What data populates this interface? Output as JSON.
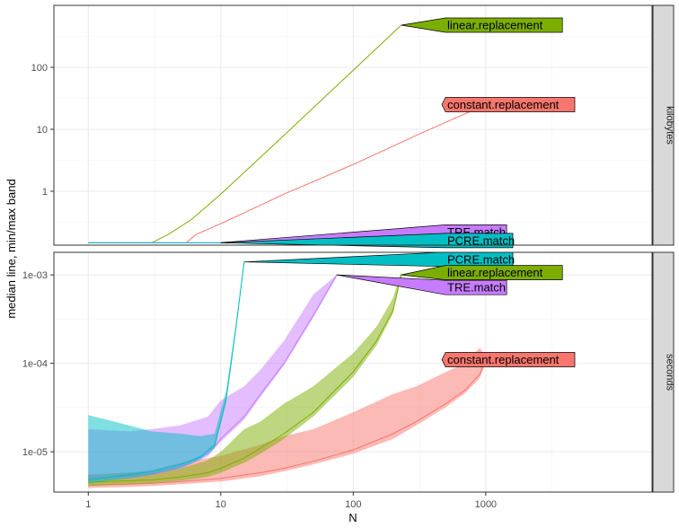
{
  "chart_data": {
    "type": "line",
    "xlabel": "N",
    "ylabel": "median line, min/max band",
    "x_scale": "log10",
    "xlim": [
      0.55,
      18000
    ],
    "x_ticks": [
      1,
      10,
      100,
      1000
    ],
    "x_tick_labels": [
      "1",
      "10",
      "100",
      "1000"
    ],
    "grid": true,
    "panels": [
      {
        "strip": "kilobytes",
        "y_scale": "log10",
        "ylim": [
          0.135,
          1000
        ],
        "y_ticks": [
          1,
          10,
          100
        ],
        "y_tick_labels": [
          "1",
          "10",
          "100"
        ],
        "series": [
          {
            "name": "linear.replacement",
            "color": "#7CAE00",
            "x": [
              1,
              3,
              4,
              6,
              10,
              30,
              100,
              230
            ],
            "y": [
              0.147,
              0.147,
              0.2,
              0.35,
              0.9,
              8,
              90,
              480
            ]
          },
          {
            "name": "constant.replacement",
            "color": "#F8766D",
            "x": [
              1,
              5.5,
              6.5,
              10,
              30,
              100,
              300,
              1000
            ],
            "y": [
              0.147,
              0.147,
              0.2,
              0.3,
              0.9,
              2.7,
              8,
              25
            ]
          },
          {
            "name": "TRE.match",
            "color": "#C77CFF",
            "x": [
              1,
              20,
              100,
              500
            ],
            "y": [
              0.147,
              0.147,
              0.148,
              0.148
            ]
          },
          {
            "name": "PCRE.match",
            "color": "#00BFC4",
            "x": [
              1,
              20,
              100,
              500
            ],
            "y": [
              0.147,
              0.147,
              0.147,
              0.147
            ]
          }
        ],
        "callouts": [
          {
            "label": "linear.replacement",
            "color": "#7CAE00",
            "tip": [
              230,
              480
            ],
            "y": 480
          },
          {
            "label": "constant.replacement",
            "color": "#F8766D",
            "tip": [
              1000,
              25
            ],
            "y": 25
          },
          {
            "label": "TRE.match",
            "color": "#C77CFF",
            "tip": [
              10,
              0.148
            ],
            "y": 0.22
          },
          {
            "label": "PCRE.match",
            "color": "#00BFC4",
            "tip": [
              10,
              0.147
            ],
            "y": 0.16
          }
        ]
      },
      {
        "strip": "seconds",
        "y_scale": "log10",
        "ylim": [
          3.5e-06,
          0.0018
        ],
        "y_ticks": [
          1e-05,
          0.0001,
          0.001
        ],
        "y_tick_labels": [
          "1e-05",
          "1e-04",
          "1e-03"
        ],
        "series": [
          {
            "name": "constant.replacement",
            "color": "#F8766D",
            "x": [
              1,
              2,
              3,
              5,
              10,
              20,
              30,
              50,
              100,
              200,
              300,
              500,
              700,
              900,
              1000
            ],
            "median": [
              4.2e-06,
              4.3e-06,
              4.4e-06,
              4.6e-06,
              5e-06,
              5.8e-06,
              6.5e-06,
              7.8e-06,
              1.05e-05,
              1.6e-05,
              2.2e-05,
              3.5e-05,
              5e-05,
              7.5e-05,
              0.00011
            ],
            "min": [
              3.9e-06,
              4e-06,
              4.1e-06,
              4.3e-06,
              4.6e-06,
              5.3e-06,
              6e-06,
              7.2e-06,
              9.5e-06,
              1.4e-05,
              2e-05,
              3.2e-05,
              4.6e-05,
              6.8e-05,
              0.0001
            ],
            "max": [
              5.5e-06,
              5.8e-06,
              6.2e-06,
              7.5e-06,
              9e-06,
              1.2e-05,
              1.5e-05,
              1.8e-05,
              2.8e-05,
              4.5e-05,
              5.5e-05,
              8e-05,
              0.0001,
              0.00015,
              0.00012
            ]
          },
          {
            "name": "linear.replacement",
            "color": "#7CAE00",
            "x": [
              1,
              2,
              3,
              5,
              8,
              10,
              15,
              20,
              30,
              50,
              100,
              150,
              200,
              230
            ],
            "median": [
              4.5e-06,
              4.7e-06,
              4.8e-06,
              5.2e-06,
              5.8e-06,
              6.5e-06,
              8.5e-06,
              1.1e-05,
              1.6e-05,
              2.8e-05,
              8e-05,
              0.00018,
              0.0004,
              0.001
            ],
            "min": [
              4.1e-06,
              4.3e-06,
              4.4e-06,
              4.7e-06,
              5.2e-06,
              5.8e-06,
              7.5e-06,
              9.5e-06,
              1.4e-05,
              2.5e-05,
              7e-05,
              0.00016,
              0.00037,
              0.00095
            ],
            "max": [
              5.5e-06,
              5.8e-06,
              6e-06,
              6.5e-06,
              8e-06,
              1e-05,
              1.8e-05,
              2.2e-05,
              3.5e-05,
              5.5e-05,
              0.00013,
              0.00026,
              0.00055,
              0.0011
            ]
          },
          {
            "name": "TRE.match",
            "color": "#C77CFF",
            "x": [
              1,
              2,
              3,
              5,
              8,
              10,
              15,
              20,
              30,
              50,
              75
            ],
            "median": [
              5e-06,
              5.3e-06,
              5.7e-06,
              6.8e-06,
              9.5e-06,
              1.4e-05,
              2.5e-05,
              4.5e-05,
              0.0001,
              0.00035,
              0.001
            ],
            "min": [
              4.7e-06,
              5e-06,
              5.4e-06,
              6.4e-06,
              8.9e-06,
              1.3e-05,
              2.3e-05,
              4.2e-05,
              9.5e-05,
              0.00033,
              0.00095
            ],
            "max": [
              1.8e-05,
              1.7e-05,
              1.8e-05,
              2e-05,
              2.5e-05,
              3.8e-05,
              5.5e-05,
              8.5e-05,
              0.00018,
              0.0006,
              0.001
            ]
          },
          {
            "name": "PCRE.match",
            "color": "#00BFC4",
            "x": [
              1,
              2,
              3,
              5,
              7,
              9,
              11,
              13,
              15
            ],
            "median": [
              4.8e-06,
              5.5e-06,
              6e-06,
              7.2e-06,
              8.8e-06,
              1.2e-05,
              4e-05,
              0.00025,
              0.0014
            ],
            "min": [
              4.4e-06,
              5e-06,
              5.5e-06,
              6.6e-06,
              8.2e-06,
              1.1e-05,
              3.6e-05,
              0.00023,
              0.0013
            ],
            "max": [
              2.6e-05,
              2e-05,
              1.7e-05,
              1.6e-05,
              1.5e-05,
              1.6e-05,
              5e-05,
              0.00028,
              0.0015
            ]
          }
        ],
        "callouts": [
          {
            "label": "PCRE.match",
            "color": "#00BFC4",
            "tip": [
              15,
              0.0014
            ],
            "y": 0.0015
          },
          {
            "label": "linear.replacement",
            "color": "#7CAE00",
            "tip": [
              230,
              0.001
            ],
            "y": 0.00106
          },
          {
            "label": "TRE.match",
            "color": "#C77CFF",
            "tip": [
              75,
              0.001
            ],
            "y": 0.00072
          },
          {
            "label": "constant.replacement",
            "color": "#F8766D",
            "tip": [
              1000,
              0.00011
            ],
            "y": 0.00011
          }
        ]
      }
    ]
  }
}
